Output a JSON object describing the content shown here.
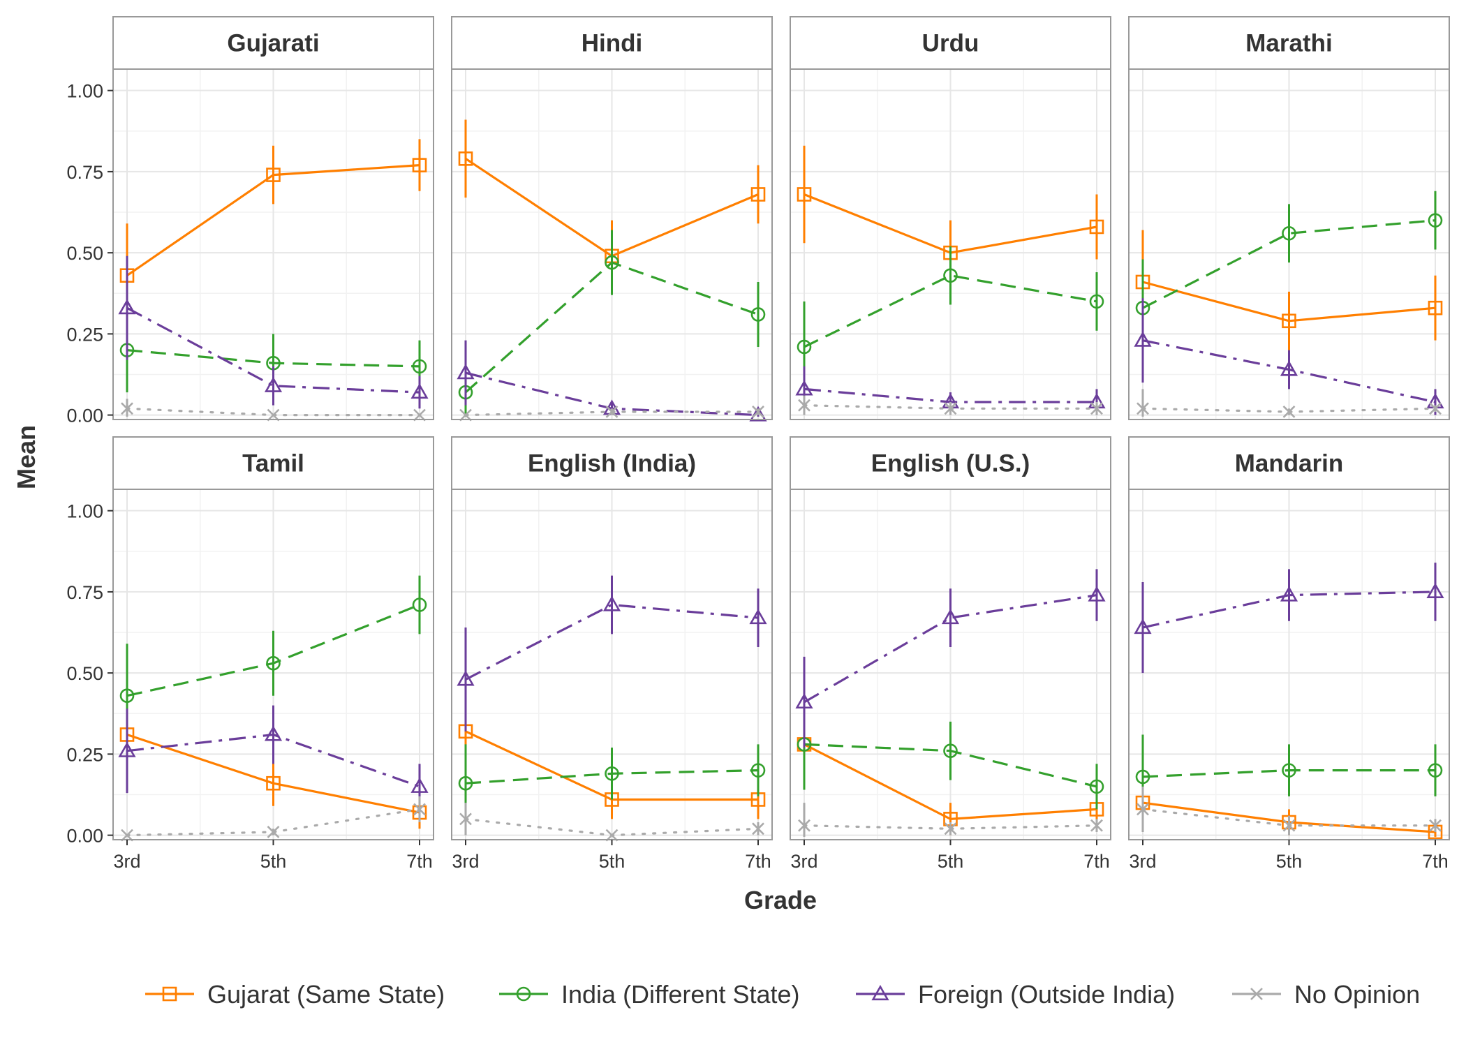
{
  "chart_data": {
    "type": "line",
    "facets": [
      "Gujarati",
      "Hindi",
      "Urdu",
      "Marathi",
      "Tamil",
      "English (India)",
      "English (U.S.)",
      "Mandarin"
    ],
    "categories": [
      "3rd",
      "5th",
      "7th"
    ],
    "xlabel": "Grade",
    "ylabel": "Mean",
    "ylim": [
      0,
      1
    ],
    "yticks": [
      "0.00",
      "0.25",
      "0.50",
      "0.75",
      "1.00"
    ],
    "legend_position": "bottom",
    "grid": true,
    "series": [
      {
        "name": "Gujarat (Same State)",
        "color": "#FF7F00",
        "marker": "square",
        "line": "solid",
        "values": [
          [
            0.43,
            0.74,
            0.77
          ],
          [
            0.79,
            0.49,
            0.68
          ],
          [
            0.68,
            0.5,
            0.58
          ],
          [
            0.41,
            0.29,
            0.33
          ],
          [
            0.31,
            0.16,
            0.07
          ],
          [
            0.32,
            0.11,
            0.11
          ],
          [
            0.28,
            0.05,
            0.08
          ],
          [
            0.1,
            0.04,
            0.01
          ]
        ],
        "err": [
          [
            0.16,
            0.09,
            0.08
          ],
          [
            0.12,
            0.11,
            0.09
          ],
          [
            0.15,
            0.1,
            0.1
          ],
          [
            0.16,
            0.09,
            0.1
          ],
          [
            0.15,
            0.07,
            0.05
          ],
          [
            0.15,
            0.06,
            0.06
          ],
          [
            0.14,
            0.05,
            0.05
          ],
          [
            0.08,
            0.04,
            0.02
          ]
        ]
      },
      {
        "name": "India (Different State)",
        "color": "#33A02C",
        "marker": "circle",
        "line": "dashed",
        "values": [
          [
            0.2,
            0.16,
            0.15
          ],
          [
            0.07,
            0.47,
            0.31
          ],
          [
            0.21,
            0.43,
            0.35
          ],
          [
            0.33,
            0.56,
            0.6
          ],
          [
            0.43,
            0.53,
            0.71
          ],
          [
            0.16,
            0.19,
            0.2
          ],
          [
            0.28,
            0.26,
            0.15
          ],
          [
            0.18,
            0.2,
            0.2
          ]
        ],
        "err": [
          [
            0.13,
            0.09,
            0.08
          ],
          [
            0.08,
            0.1,
            0.1
          ],
          [
            0.14,
            0.09,
            0.09
          ],
          [
            0.15,
            0.09,
            0.09
          ],
          [
            0.16,
            0.1,
            0.09
          ],
          [
            0.12,
            0.08,
            0.08
          ],
          [
            0.14,
            0.09,
            0.07
          ],
          [
            0.13,
            0.08,
            0.08
          ]
        ]
      },
      {
        "name": "Foreign (Outside India)",
        "color": "#6A3D9A",
        "marker": "triangle",
        "line": "dotdash",
        "values": [
          [
            0.33,
            0.09,
            0.07
          ],
          [
            0.13,
            0.02,
            0.0
          ],
          [
            0.08,
            0.04,
            0.04
          ],
          [
            0.23,
            0.14,
            0.04
          ],
          [
            0.26,
            0.31,
            0.15
          ],
          [
            0.48,
            0.71,
            0.67
          ],
          [
            0.41,
            0.67,
            0.74
          ],
          [
            0.64,
            0.74,
            0.75
          ]
        ],
        "err": [
          [
            0.16,
            0.06,
            0.05
          ],
          [
            0.1,
            0.02,
            0.01
          ],
          [
            0.07,
            0.03,
            0.04
          ],
          [
            0.13,
            0.06,
            0.04
          ],
          [
            0.13,
            0.09,
            0.07
          ],
          [
            0.16,
            0.09,
            0.09
          ],
          [
            0.14,
            0.09,
            0.08
          ],
          [
            0.14,
            0.08,
            0.09
          ]
        ]
      },
      {
        "name": "No Opinion",
        "color": "#AAAAAA",
        "marker": "cross",
        "line": "dotted",
        "values": [
          [
            0.02,
            0.0,
            0.0
          ],
          [
            0.0,
            0.01,
            0.01
          ],
          [
            0.03,
            0.02,
            0.02
          ],
          [
            0.02,
            0.01,
            0.02
          ],
          [
            0.0,
            0.01,
            0.08
          ],
          [
            0.05,
            0.0,
            0.02
          ],
          [
            0.03,
            0.02,
            0.03
          ],
          [
            0.08,
            0.03,
            0.03
          ]
        ],
        "err": [
          [
            0.03,
            0.0,
            0.0
          ],
          [
            0.0,
            0.01,
            0.01
          ],
          [
            0.03,
            0.02,
            0.02
          ],
          [
            0.06,
            0.01,
            0.01
          ],
          [
            0.0,
            0.01,
            0.04
          ],
          [
            0.05,
            0.0,
            0.02
          ],
          [
            0.07,
            0.02,
            0.02
          ],
          [
            0.07,
            0.03,
            0.02
          ]
        ]
      }
    ]
  }
}
